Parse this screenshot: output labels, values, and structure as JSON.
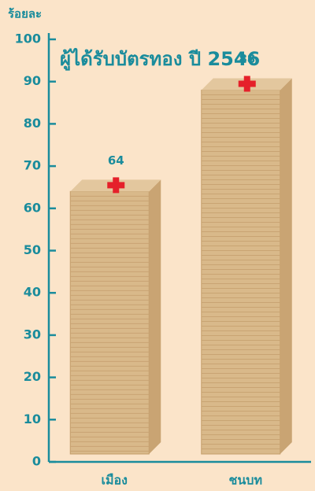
{
  "chart_data": {
    "type": "bar",
    "title": "ผู้ได้รับบัตรทอง ปี 2546",
    "y_label": "ร้อยละ",
    "categories": [
      "เมือง",
      "ชนบท"
    ],
    "values": [
      64,
      88
    ],
    "color": "#d9b98a",
    "ylim": [
      0,
      100
    ],
    "yticks": [
      0,
      10,
      20,
      30,
      40,
      50,
      60,
      70,
      80,
      90,
      100
    ]
  }
}
